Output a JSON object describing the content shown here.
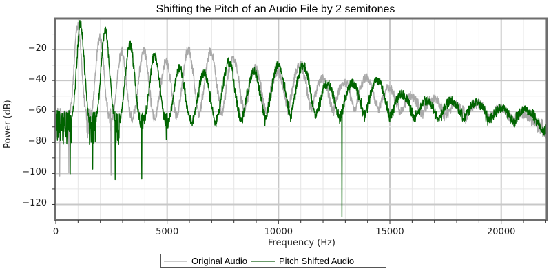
{
  "chart_data": {
    "type": "line",
    "title": "Shifting the Pitch of an Audio File by 2 semitones",
    "xlabel": "Frequency (Hz)",
    "ylabel": "Power (dB)",
    "xlim": [
      0,
      22050
    ],
    "ylim": [
      -130,
      0
    ],
    "x_ticks": [
      0,
      5000,
      10000,
      15000,
      20000
    ],
    "x_tick_labels": [
      "0",
      "5000",
      "10000",
      "15000",
      "20000"
    ],
    "y_ticks": [
      -20,
      -40,
      -60,
      -80,
      -100,
      -120
    ],
    "y_tick_labels": [
      "−20",
      "−40",
      "−60",
      "−80",
      "−100",
      "−120"
    ],
    "grid": true,
    "legend_position": "bottom-center",
    "series": [
      {
        "name": "Original Audio",
        "color": "#aaaaaa",
        "noise_floor_db": -68,
        "peaks": [
          {
            "freq": 990,
            "db": -5
          },
          {
            "freq": 1980,
            "db": -12
          },
          {
            "freq": 2960,
            "db": -21
          },
          {
            "freq": 3950,
            "db": -20
          },
          {
            "freq": 4950,
            "db": -27
          },
          {
            "freq": 5950,
            "db": -20
          },
          {
            "freq": 6950,
            "db": -21
          },
          {
            "freq": 7960,
            "db": -25
          },
          {
            "freq": 8950,
            "db": -32
          },
          {
            "freq": 9950,
            "db": -34
          },
          {
            "freq": 10950,
            "db": -30
          },
          {
            "freq": 11950,
            "db": -39
          },
          {
            "freq": 12950,
            "db": -41
          },
          {
            "freq": 13950,
            "db": -38
          },
          {
            "freq": 14950,
            "db": -45
          },
          {
            "freq": 15950,
            "db": -50
          },
          {
            "freq": 16950,
            "db": -52
          },
          {
            "freq": 17950,
            "db": -56
          },
          {
            "freq": 18950,
            "db": -55
          },
          {
            "freq": 19950,
            "db": -58
          },
          {
            "freq": 20950,
            "db": -62
          }
        ]
      },
      {
        "name": "Pitch Shifted Audio",
        "color": "#006400",
        "noise_floor_db": -70,
        "peaks": [
          {
            "freq": 1110,
            "db": -3
          },
          {
            "freq": 2220,
            "db": -8
          },
          {
            "freq": 3330,
            "db": -17
          },
          {
            "freq": 4440,
            "db": -24
          },
          {
            "freq": 5550,
            "db": -32
          },
          {
            "freq": 6650,
            "db": -35
          },
          {
            "freq": 7770,
            "db": -28
          },
          {
            "freq": 8890,
            "db": -34
          },
          {
            "freq": 9990,
            "db": -30
          },
          {
            "freq": 11100,
            "db": -30
          },
          {
            "freq": 12200,
            "db": -42
          },
          {
            "freq": 13320,
            "db": -42
          },
          {
            "freq": 14430,
            "db": -40
          },
          {
            "freq": 15550,
            "db": -49
          },
          {
            "freq": 16650,
            "db": -53
          },
          {
            "freq": 17770,
            "db": -53
          },
          {
            "freq": 18880,
            "db": -54
          },
          {
            "freq": 19990,
            "db": -58
          },
          {
            "freq": 21100,
            "db": -59
          }
        ],
        "min_db": -128
      }
    ]
  },
  "legend": {
    "items": [
      {
        "label": "Original Audio",
        "color": "#cccccc"
      },
      {
        "label": "Pitch Shifted Audio",
        "color": "#6a9a6a"
      }
    ]
  }
}
